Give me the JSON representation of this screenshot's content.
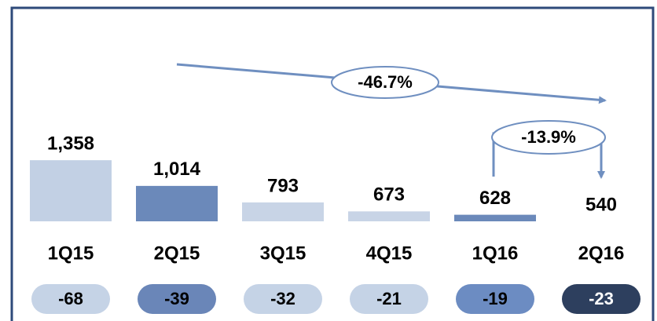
{
  "chart_data": {
    "type": "bar",
    "categories": [
      "1Q15",
      "2Q15",
      "3Q15",
      "4Q15",
      "1Q16",
      "2Q16"
    ],
    "values": [
      1358,
      1014,
      793,
      673,
      628,
      540
    ],
    "value_labels": [
      "1,358",
      "1,014",
      "793",
      "673",
      "628",
      "540"
    ],
    "colors": [
      "#c2d0e4",
      "#6b89ba",
      "#c8d4e6",
      "#c8d4e6",
      "#6b89ba",
      "#6b89ba"
    ],
    "ylim": [
      540,
      2000
    ],
    "annotations": [
      "-46.7%",
      "-13.9%"
    ],
    "badges": {
      "values": [
        -68,
        -39,
        -32,
        -21,
        -19,
        -23
      ],
      "colors": [
        "#c5d3e6",
        "#6a86b8",
        "#c5d3e6",
        "#c5d3e6",
        "#6c8cc2",
        "#2d3f5e"
      ]
    }
  }
}
